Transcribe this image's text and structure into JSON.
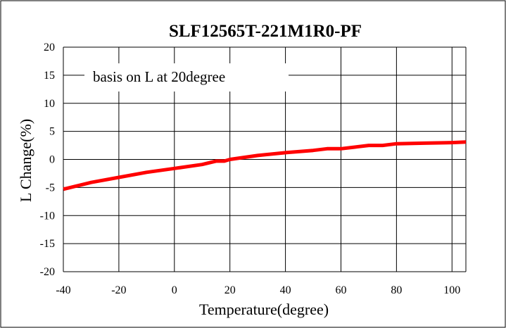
{
  "chart_data": {
    "type": "line",
    "title": "SLF12565T-221M1R0-PF",
    "xlabel": "Temperature(degree)",
    "ylabel": "L Change(%)",
    "annotation": "basis on L at 20degree",
    "xlim": [
      -40,
      105
    ],
    "ylim": [
      -20,
      20
    ],
    "xticks": [
      -40,
      -20,
      0,
      20,
      40,
      60,
      80,
      100
    ],
    "yticks": [
      20,
      15,
      10,
      5,
      0,
      -5,
      -10,
      -15,
      -20
    ],
    "grid": true,
    "series_color": "#ff0000",
    "series": [
      {
        "x": [
          -40,
          -30,
          -20,
          -10,
          0,
          10,
          15,
          18,
          20,
          30,
          40,
          50,
          55,
          60,
          65,
          70,
          75,
          80,
          90,
          100,
          105
        ],
        "y": [
          -5.3,
          -4.1,
          -3.2,
          -2.3,
          -1.6,
          -0.9,
          -0.3,
          -0.3,
          0.0,
          0.7,
          1.2,
          1.6,
          1.9,
          1.9,
          2.2,
          2.5,
          2.5,
          2.8,
          2.9,
          3.0,
          3.1
        ]
      }
    ]
  }
}
